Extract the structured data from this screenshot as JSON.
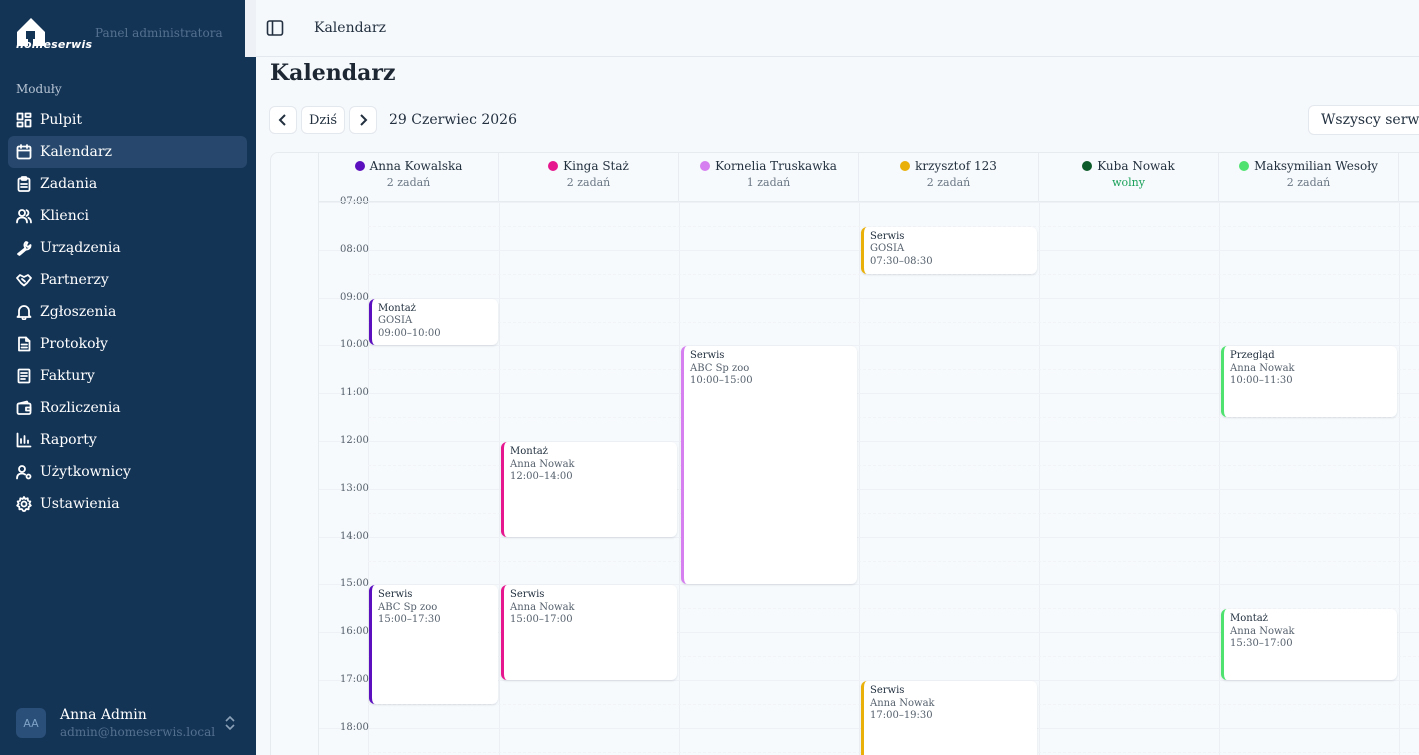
{
  "sidebar": {
    "brand_name": "homeserwis",
    "panel_label": "Panel administratora",
    "section_label": "Moduły",
    "items": [
      {
        "label": "Pulpit",
        "icon": "dashboard-icon"
      },
      {
        "label": "Kalendarz",
        "icon": "calendar-icon"
      },
      {
        "label": "Zadania",
        "icon": "clipboard-icon"
      },
      {
        "label": "Klienci",
        "icon": "users-icon"
      },
      {
        "label": "Urządzenia",
        "icon": "wrench-icon"
      },
      {
        "label": "Partnerzy",
        "icon": "handshake-icon"
      },
      {
        "label": "Zgłoszenia",
        "icon": "bell-icon"
      },
      {
        "label": "Protokoły",
        "icon": "file-icon"
      },
      {
        "label": "Faktury",
        "icon": "receipt-icon"
      },
      {
        "label": "Rozliczenia",
        "icon": "wallet-icon"
      },
      {
        "label": "Raporty",
        "icon": "bar-chart-icon"
      },
      {
        "label": "Użytkownicy",
        "icon": "user-cog-icon"
      },
      {
        "label": "Ustawienia",
        "icon": "gear-icon"
      }
    ],
    "user": {
      "initials": "AA",
      "name": "Anna Admin",
      "email": "admin@homeserwis.local"
    }
  },
  "header": {
    "title": "Kalendarz"
  },
  "page": {
    "title": "Kalendarz",
    "today_label": "Dziś",
    "date_label": "29 Czerwiec 2026",
    "filter_value": "Wszyscy serwisanci"
  },
  "calendar": {
    "hours": [
      "07:00",
      "08:00",
      "09:00",
      "10:00",
      "11:00",
      "12:00",
      "13:00",
      "14:00",
      "15:00",
      "16:00",
      "17:00",
      "18:00"
    ],
    "technicians": [
      {
        "name": "Anna Kowalska",
        "count": "2 zadań",
        "color": "#5b0fbf",
        "free": false
      },
      {
        "name": "Kinga Staż",
        "count": "2 zadań",
        "color": "#e6168e",
        "free": false
      },
      {
        "name": "Kornelia Truskawka",
        "count": "1 zadań",
        "color": "#d67ff0",
        "free": false
      },
      {
        "name": "krzysztof 123",
        "count": "2 zadań",
        "color": "#e9b00a",
        "free": false
      },
      {
        "name": "Kuba Nowak",
        "count": "wolny",
        "color": "#0d5a2a",
        "free": true
      },
      {
        "name": "Maksymilian Wesoły",
        "count": "2 zadań",
        "color": "#4fe26f",
        "free": false
      }
    ],
    "events": [
      {
        "col": 0,
        "start": 9.0,
        "end": 10.0,
        "type": "Montaż",
        "client": "GOSIA",
        "time": "09:00–10:00"
      },
      {
        "col": 0,
        "start": 15.0,
        "end": 17.5,
        "type": "Serwis",
        "client": "ABC Sp zoo",
        "time": "15:00–17:30"
      },
      {
        "col": 1,
        "start": 12.0,
        "end": 14.0,
        "type": "Montaż",
        "client": "Anna Nowak",
        "time": "12:00–14:00"
      },
      {
        "col": 1,
        "start": 15.0,
        "end": 17.0,
        "type": "Serwis",
        "client": "Anna Nowak",
        "time": "15:00–17:00"
      },
      {
        "col": 2,
        "start": 10.0,
        "end": 15.0,
        "type": "Serwis",
        "client": "ABC Sp zoo",
        "time": "10:00–15:00"
      },
      {
        "col": 3,
        "start": 7.5,
        "end": 8.5,
        "type": "Serwis",
        "client": "GOSIA",
        "time": "07:30–08:30"
      },
      {
        "col": 3,
        "start": 17.0,
        "end": 19.5,
        "type": "Serwis",
        "client": "Anna Nowak",
        "time": "17:00–19:30"
      },
      {
        "col": 5,
        "start": 10.0,
        "end": 11.5,
        "type": "Przegląd",
        "client": "Anna Nowak",
        "time": "10:00–11:30"
      },
      {
        "col": 5,
        "start": 15.5,
        "end": 17.0,
        "type": "Montaż",
        "client": "Anna Nowak",
        "time": "15:30–17:00"
      }
    ]
  }
}
